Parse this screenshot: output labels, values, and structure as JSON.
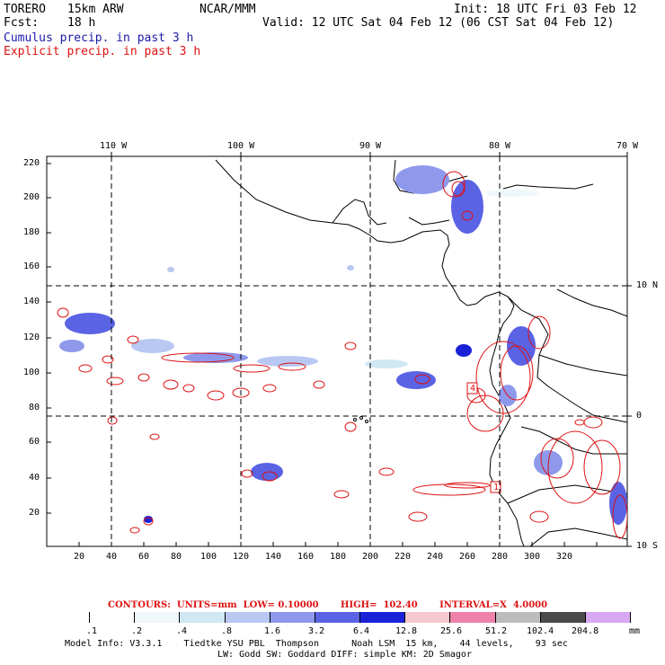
{
  "header": {
    "model": "TORERO",
    "resolution": "15km ARW",
    "org": "NCAR/MMM",
    "init": "Init: 18 UTC Fri 03 Feb 12",
    "fcst_label": "Fcst:",
    "fcst_value": "18 h",
    "valid": "Valid: 12 UTC Sat 04 Feb 12 (06 CST Sat 04 Feb 12)",
    "cumulus": "Cumulus precip. in past 3 h",
    "explicit": "Explicit precip. in past 3 h"
  },
  "axes": {
    "top_lon": [
      "110 W",
      "100 W",
      "90 W",
      "80 W",
      "70 W"
    ],
    "right_lat": [
      "10 N",
      "0",
      "10 S"
    ],
    "left_y": [
      "220",
      "200",
      "180",
      "160",
      "140",
      "120",
      "100",
      "80",
      "60",
      "40",
      "20"
    ],
    "bottom_x": [
      "20",
      "40",
      "60",
      "80",
      "100",
      "120",
      "140",
      "160",
      "180",
      "200",
      "220",
      "240",
      "260",
      "280",
      "300",
      "320"
    ]
  },
  "contour_labels": [
    "4",
    "1"
  ],
  "footer": {
    "contours_info": "CONTOURS:  UNITS=mm  LOW= 0.10000       HIGH=  102.40       INTERVAL=X  4.0000",
    "colorbar_values": [
      ".1",
      ".2",
      ".4",
      ".8",
      "1.6",
      "3.2",
      "6.4",
      "12.8",
      "25.6",
      "51.2",
      "102.4",
      "204.8"
    ],
    "colorbar_unit": "mm",
    "colorbar_colors": [
      "#ffffff",
      "#ffffff",
      "#eef8fb",
      "#cfe8f3",
      "#b9c8f2",
      "#8e99ec",
      "#5a63e4",
      "#1a22d8",
      "#f4c8cc",
      "#ee82aa",
      "#bcbcbc",
      "#4a4a4a",
      "#d9a8f2"
    ],
    "model_info_1": "Model Info: V3.3.1    Tiedtke YSU PBL  Thompson      Noah LSM  15 km,    44 levels,    93 sec",
    "model_info_2": "LW: Godd SW: Goddard DIFF: simple KM: 2D Smagor"
  }
}
